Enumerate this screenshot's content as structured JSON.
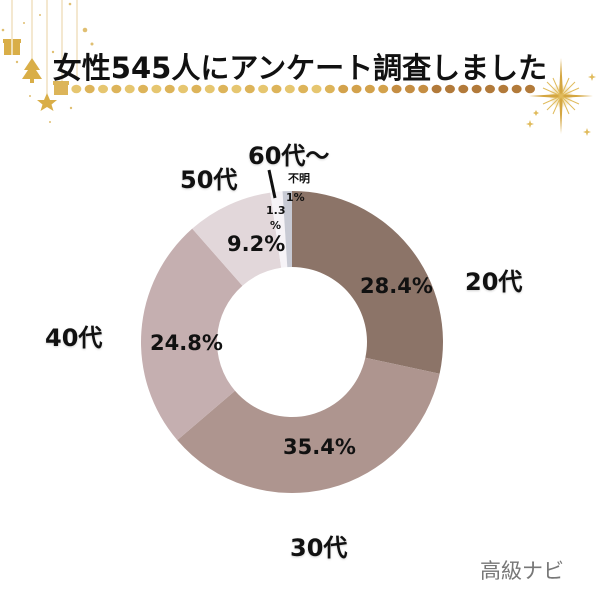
{
  "title": "女性545人にアンケート調査しました",
  "watermark": "高級ナビ",
  "decor": {
    "dot_color_start": "#E3C268",
    "dot_color_end": "#B07A3A",
    "gold": "#D9AE48",
    "icons": [
      "gift-icon",
      "christmas-tree-icon",
      "star-icon",
      "sparkle-icon"
    ]
  },
  "labels": {
    "cat_20": "20代",
    "cat_30": "30代",
    "cat_40": "40代",
    "cat_50": "50代",
    "cat_60": "60代〜",
    "cat_unknown": "不明",
    "pct_20": "28.4%",
    "pct_30": "35.4%",
    "pct_40": "24.8%",
    "pct_50": "9.2%",
    "pct_60_line1": "1.3",
    "pct_60_line2": "%",
    "pct_unknown": "1%"
  },
  "chart_data": {
    "type": "pie",
    "subtype": "donut",
    "title": "女性545人にアンケート調査しました",
    "categories": [
      "20代",
      "30代",
      "40代",
      "50代",
      "60代〜",
      "不明"
    ],
    "values": [
      28.4,
      35.4,
      24.8,
      9.2,
      1.3,
      1.0
    ],
    "unit": "%",
    "colors": [
      "#8C7468",
      "#AE958F",
      "#C5AFB0",
      "#E2D7DA",
      "#F6F3F7",
      "#C8CAD4"
    ],
    "start_angle_deg": 0,
    "direction": "clockwise",
    "legend": "none (labels placed next to slices)",
    "sample_size": 545
  }
}
